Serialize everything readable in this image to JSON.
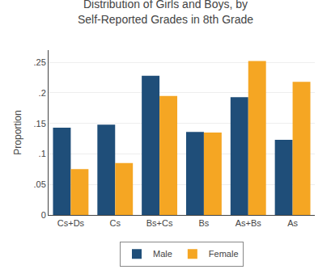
{
  "chart_data": {
    "type": "bar",
    "title": "Distribution of Girls and Boys, by\nSelf-Reported Grades in 8th Grade",
    "categories": [
      "Cs+Ds",
      "Cs",
      "Bs+Cs",
      "Bs",
      "As+Bs",
      "As"
    ],
    "series": [
      {
        "name": "Male",
        "color": "#1f4e79",
        "values": [
          0.143,
          0.148,
          0.228,
          0.136,
          0.193,
          0.123
        ]
      },
      {
        "name": "Female",
        "color": "#f5a623",
        "values": [
          0.075,
          0.085,
          0.195,
          0.135,
          0.252,
          0.218
        ]
      }
    ],
    "ylabel": "Proportion",
    "ylim": [
      0,
      0.27
    ],
    "yticks": [
      0,
      {
        "value": 0.05,
        "label": ".05"
      },
      {
        "value": 0.1,
        "label": ".1"
      },
      {
        "value": 0.15,
        "label": ".15"
      },
      {
        "value": 0.2,
        "label": ".2"
      },
      {
        "value": 0.25,
        "label": ".25"
      }
    ],
    "grid": true,
    "legend": "bottom"
  }
}
